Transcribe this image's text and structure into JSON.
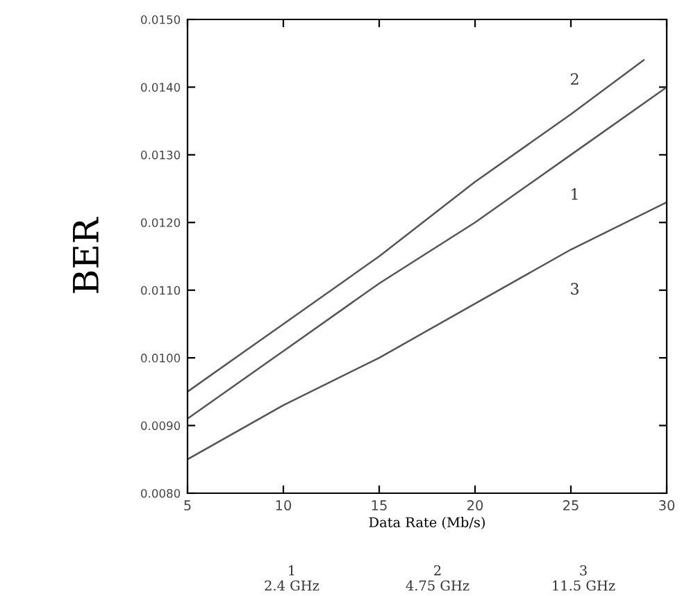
{
  "chart_data": {
    "type": "line",
    "xlabel": "Data Rate (Mb/s)",
    "ylabel": "BER",
    "series": [
      {
        "name": "2",
        "color": "#555555",
        "x": [
          5,
          10,
          15,
          20,
          25,
          28.8
        ],
        "values": [
          0.0095,
          0.0105,
          0.0115,
          0.0126,
          0.0136,
          0.0144
        ]
      },
      {
        "name": "1",
        "color": "#555555",
        "x": [
          5,
          10,
          15,
          20,
          25,
          30
        ],
        "values": [
          0.0091,
          0.0101,
          0.0111,
          0.012,
          0.013,
          0.014
        ]
      },
      {
        "name": "3",
        "color": "#555555",
        "x": [
          5,
          10,
          15,
          20,
          25,
          30
        ],
        "values": [
          0.0085,
          0.0093,
          0.01,
          0.0108,
          0.0116,
          0.0123
        ]
      }
    ],
    "xlim": [
      5,
      30
    ],
    "xticks": [
      5,
      10,
      15,
      20,
      25,
      30
    ],
    "ylim": [
      0.008,
      0.015
    ],
    "yticks": [
      {
        "value": 0.008,
        "label": "0.0080"
      },
      {
        "value": 0.009,
        "label": "0.0090"
      },
      {
        "value": 0.01,
        "label": "0.0100"
      },
      {
        "value": 0.011,
        "label": "0.0110"
      },
      {
        "value": 0.012,
        "label": "0.0120"
      },
      {
        "value": 0.013,
        "label": "0.0130"
      },
      {
        "value": 0.014,
        "label": "0.0140"
      },
      {
        "value": 0.015,
        "label": "0.0150"
      }
    ],
    "annotations": [
      "1\n2.4 GHz",
      "2\n4.75 GHz",
      "3\n11.5 GHz"
    ],
    "grid": false,
    "legend": false,
    "marker": "none",
    "line_style": "solid"
  }
}
